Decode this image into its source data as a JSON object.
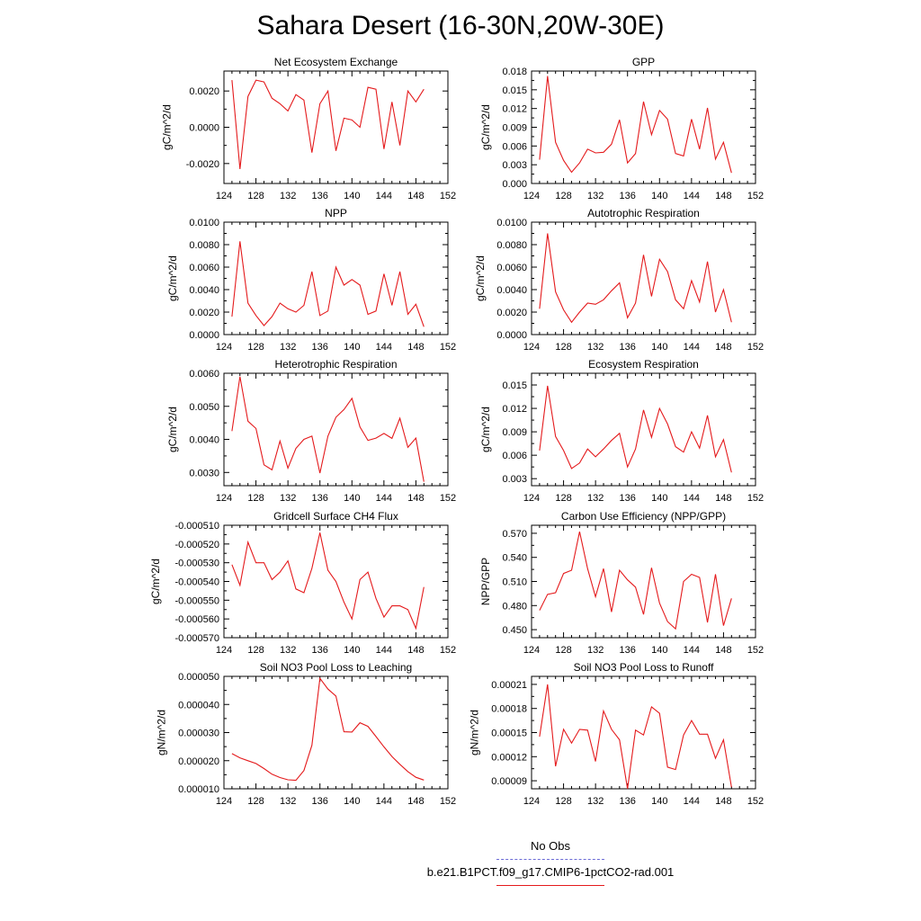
{
  "title": "Sahara Desert (16-30N,20W-30E)",
  "legend": {
    "items": [
      {
        "label": "No Obs",
        "color": "#6b6bd6",
        "dash": true
      },
      {
        "label": "b.e21.B1PCT.f09_g17.CMIP6-1pctCO2-rad.001",
        "color": "#e41a1c",
        "dash": false
      }
    ]
  },
  "chart_data": [
    {
      "type": "line",
      "title": "Net Ecosystem Exchange",
      "ylabel": "gC/m^2/d",
      "xlim": [
        124,
        152
      ],
      "xticks": [
        124,
        128,
        132,
        136,
        140,
        144,
        148,
        152
      ],
      "ylim": [
        -0.0031,
        0.0031
      ],
      "yticks": [
        -0.002,
        0.0,
        0.002
      ],
      "ytick_labels": [
        "-0.0020",
        "0.0000",
        "0.0020"
      ],
      "x": [
        125,
        126,
        127,
        128,
        129,
        130,
        131,
        132,
        133,
        134,
        135,
        136,
        137,
        138,
        139,
        140,
        141,
        142,
        143,
        144,
        145,
        146,
        147,
        148,
        149
      ],
      "series": [
        {
          "color": "#e41a1c",
          "values": [
            0.0026,
            -0.0023,
            0.0017,
            0.0026,
            0.0025,
            0.0016,
            0.0013,
            0.0009,
            0.0018,
            0.0015,
            -0.0014,
            0.0013,
            0.002,
            -0.0013,
            0.0005,
            0.0004,
            0.0,
            0.0022,
            0.0021,
            -0.0012,
            0.0014,
            -0.001,
            0.002,
            0.0014,
            0.0021
          ]
        }
      ]
    },
    {
      "type": "line",
      "title": "GPP",
      "ylabel": "gC/m^2/d",
      "xlim": [
        124,
        152
      ],
      "xticks": [
        124,
        128,
        132,
        136,
        140,
        144,
        148,
        152
      ],
      "ylim": [
        0.0,
        0.018
      ],
      "yticks": [
        0.0,
        0.003,
        0.006,
        0.009,
        0.012,
        0.015,
        0.018
      ],
      "ytick_labels": [
        "0.000",
        "0.003",
        "0.006",
        "0.009",
        "0.012",
        "0.015",
        "0.018"
      ],
      "x": [
        125,
        126,
        127,
        128,
        129,
        130,
        131,
        132,
        133,
        134,
        135,
        136,
        137,
        138,
        139,
        140,
        141,
        142,
        143,
        144,
        145,
        146,
        147,
        148,
        149
      ],
      "series": [
        {
          "color": "#e41a1c",
          "values": [
            0.0038,
            0.0172,
            0.0066,
            0.0037,
            0.0018,
            0.0033,
            0.0055,
            0.0049,
            0.005,
            0.0063,
            0.0102,
            0.0033,
            0.0048,
            0.0131,
            0.0078,
            0.0117,
            0.0103,
            0.0048,
            0.0044,
            0.0103,
            0.0055,
            0.0121,
            0.0039,
            0.0066,
            0.0017
          ]
        }
      ]
    },
    {
      "type": "line",
      "title": "NPP",
      "ylabel": "gC/m^2/d",
      "xlim": [
        124,
        152
      ],
      "xticks": [
        124,
        128,
        132,
        136,
        140,
        144,
        148,
        152
      ],
      "ylim": [
        0.0,
        0.01
      ],
      "yticks": [
        0.0,
        0.002,
        0.004,
        0.006,
        0.008,
        0.01
      ],
      "ytick_labels": [
        "0.0000",
        "0.0020",
        "0.0040",
        "0.0060",
        "0.0080",
        "0.0100"
      ],
      "x": [
        125,
        126,
        127,
        128,
        129,
        130,
        131,
        132,
        133,
        134,
        135,
        136,
        137,
        138,
        139,
        140,
        141,
        142,
        143,
        144,
        145,
        146,
        147,
        148,
        149
      ],
      "series": [
        {
          "color": "#e41a1c",
          "values": [
            0.0016,
            0.0083,
            0.0028,
            0.0017,
            0.0008,
            0.0016,
            0.0028,
            0.0023,
            0.002,
            0.0026,
            0.0056,
            0.0017,
            0.0021,
            0.006,
            0.0044,
            0.0049,
            0.0044,
            0.0018,
            0.0021,
            0.0054,
            0.0026,
            0.0056,
            0.0018,
            0.0027,
            0.0007
          ]
        }
      ]
    },
    {
      "type": "line",
      "title": "Autotrophic Respiration",
      "ylabel": "gC/m^2/d",
      "xlim": [
        124,
        152
      ],
      "xticks": [
        124,
        128,
        132,
        136,
        140,
        144,
        148,
        152
      ],
      "ylim": [
        0.0,
        0.01
      ],
      "yticks": [
        0.0,
        0.002,
        0.004,
        0.006,
        0.008,
        0.01
      ],
      "ytick_labels": [
        "0.0000",
        "0.0020",
        "0.0040",
        "0.0060",
        "0.0080",
        "0.0100"
      ],
      "x": [
        125,
        126,
        127,
        128,
        129,
        130,
        131,
        132,
        133,
        134,
        135,
        136,
        137,
        138,
        139,
        140,
        141,
        142,
        143,
        144,
        145,
        146,
        147,
        148,
        149
      ],
      "series": [
        {
          "color": "#e41a1c",
          "values": [
            0.0023,
            0.009,
            0.0038,
            0.0022,
            0.0011,
            0.002,
            0.0028,
            0.0027,
            0.0031,
            0.0039,
            0.0046,
            0.0015,
            0.0028,
            0.0071,
            0.0034,
            0.0067,
            0.0056,
            0.0031,
            0.0023,
            0.0048,
            0.0029,
            0.0065,
            0.002,
            0.004,
            0.0011
          ]
        }
      ]
    },
    {
      "type": "line",
      "title": "Heterotrophic Respiration",
      "ylabel": "gC/m^2/d",
      "xlim": [
        124,
        152
      ],
      "xticks": [
        124,
        128,
        132,
        136,
        140,
        144,
        148,
        152
      ],
      "ylim": [
        0.0026,
        0.006
      ],
      "yticks": [
        0.003,
        0.004,
        0.005,
        0.006
      ],
      "ytick_labels": [
        "0.0030",
        "0.0040",
        "0.0050",
        "0.0060"
      ],
      "x": [
        125,
        126,
        127,
        128,
        129,
        130,
        131,
        132,
        133,
        134,
        135,
        136,
        137,
        138,
        139,
        140,
        141,
        142,
        143,
        144,
        145,
        146,
        147,
        148,
        149
      ],
      "series": [
        {
          "color": "#e41a1c",
          "values": [
            0.00425,
            0.0059,
            0.00455,
            0.00433,
            0.00323,
            0.00308,
            0.00395,
            0.00313,
            0.00373,
            0.004,
            0.0041,
            0.00298,
            0.0041,
            0.00467,
            0.0049,
            0.00524,
            0.00438,
            0.00397,
            0.00404,
            0.00418,
            0.00403,
            0.00464,
            0.00376,
            0.00404,
            0.00272
          ]
        }
      ]
    },
    {
      "type": "line",
      "title": "Ecosystem Respiration",
      "ylabel": "gC/m^2/d",
      "xlim": [
        124,
        152
      ],
      "xticks": [
        124,
        128,
        132,
        136,
        140,
        144,
        148,
        152
      ],
      "ylim": [
        0.0021,
        0.0165
      ],
      "yticks": [
        0.003,
        0.006,
        0.009,
        0.012,
        0.015
      ],
      "ytick_labels": [
        "0.003",
        "0.006",
        "0.009",
        "0.012",
        "0.015"
      ],
      "x": [
        125,
        126,
        127,
        128,
        129,
        130,
        131,
        132,
        133,
        134,
        135,
        136,
        137,
        138,
        139,
        140,
        141,
        142,
        143,
        144,
        145,
        146,
        147,
        148,
        149
      ],
      "series": [
        {
          "color": "#e41a1c",
          "values": [
            0.0066,
            0.0149,
            0.0084,
            0.0066,
            0.0043,
            0.005,
            0.0068,
            0.0058,
            0.0068,
            0.0079,
            0.0088,
            0.0045,
            0.0068,
            0.0118,
            0.0083,
            0.012,
            0.01,
            0.0071,
            0.0064,
            0.009,
            0.0069,
            0.0111,
            0.0058,
            0.008,
            0.0038
          ]
        }
      ]
    },
    {
      "type": "line",
      "title": "Gridcell Surface CH4 Flux",
      "ylabel": "gC/m^2/d",
      "xlim": [
        124,
        152
      ],
      "xticks": [
        124,
        128,
        132,
        136,
        140,
        144,
        148,
        152
      ],
      "ylim": [
        -0.00057,
        -0.00051
      ],
      "yticks": [
        -0.00057,
        -0.00056,
        -0.00055,
        -0.00054,
        -0.00053,
        -0.00052,
        -0.00051
      ],
      "ytick_labels": [
        "-0.000570",
        "-0.000560",
        "-0.000550",
        "-0.000540",
        "-0.000530",
        "-0.000520",
        "-0.000510"
      ],
      "x": [
        125,
        126,
        127,
        128,
        129,
        130,
        131,
        132,
        133,
        134,
        135,
        136,
        137,
        138,
        139,
        140,
        141,
        142,
        143,
        144,
        145,
        146,
        147,
        148,
        149
      ],
      "series": [
        {
          "color": "#e41a1c",
          "values": [
            -0.000531,
            -0.000542,
            -0.000519,
            -0.00053,
            -0.00053,
            -0.000539,
            -0.000535,
            -0.000529,
            -0.000544,
            -0.000546,
            -0.000533,
            -0.000514,
            -0.000534,
            -0.00054,
            -0.000551,
            -0.00056,
            -0.000539,
            -0.000535,
            -0.000549,
            -0.000559,
            -0.000553,
            -0.000553,
            -0.000555,
            -0.000565,
            -0.000543
          ]
        }
      ]
    },
    {
      "type": "line",
      "title": "Carbon Use Efficiency (NPP/GPP)",
      "ylabel": "NPP/GPP",
      "xlim": [
        124,
        152
      ],
      "xticks": [
        124,
        128,
        132,
        136,
        140,
        144,
        148,
        152
      ],
      "ylim": [
        0.44,
        0.58
      ],
      "yticks": [
        0.45,
        0.48,
        0.51,
        0.54,
        0.57
      ],
      "ytick_labels": [
        "0.450",
        "0.480",
        "0.510",
        "0.540",
        "0.570"
      ],
      "x": [
        125,
        126,
        127,
        128,
        129,
        130,
        131,
        132,
        133,
        134,
        135,
        136,
        137,
        138,
        139,
        140,
        141,
        142,
        143,
        144,
        145,
        146,
        147,
        148,
        149
      ],
      "series": [
        {
          "color": "#e41a1c",
          "values": [
            0.474,
            0.494,
            0.496,
            0.52,
            0.524,
            0.572,
            0.526,
            0.491,
            0.526,
            0.472,
            0.524,
            0.512,
            0.503,
            0.469,
            0.527,
            0.483,
            0.46,
            0.451,
            0.51,
            0.519,
            0.515,
            0.459,
            0.519,
            0.455,
            0.489
          ]
        }
      ]
    },
    {
      "type": "line",
      "title": "Soil NO3 Pool Loss to Leaching",
      "ylabel": "gN/m^2/d",
      "xlim": [
        124,
        152
      ],
      "xticks": [
        124,
        128,
        132,
        136,
        140,
        144,
        148,
        152
      ],
      "ylim": [
        1e-05,
        5e-05
      ],
      "yticks": [
        1e-05,
        2e-05,
        3e-05,
        4e-05,
        5e-05
      ],
      "ytick_labels": [
        "0.000010",
        "0.000020",
        "0.000030",
        "0.000040",
        "0.000050"
      ],
      "x": [
        125,
        126,
        127,
        128,
        129,
        130,
        131,
        132,
        133,
        134,
        135,
        136,
        137,
        138,
        139,
        140,
        141,
        142,
        143,
        144,
        145,
        146,
        147,
        148,
        149
      ],
      "series": [
        {
          "color": "#e41a1c",
          "values": [
            2.25e-05,
            2.1e-05,
            2e-05,
            1.9e-05,
            1.72e-05,
            1.52e-05,
            1.4e-05,
            1.32e-05,
            1.3e-05,
            1.65e-05,
            2.55e-05,
            4.93e-05,
            4.55e-05,
            4.3e-05,
            3.03e-05,
            3.02e-05,
            3.35e-05,
            3.22e-05,
            2.86e-05,
            2.49e-05,
            2.15e-05,
            1.87e-05,
            1.61e-05,
            1.41e-05,
            1.31e-05
          ]
        }
      ]
    },
    {
      "type": "line",
      "title": "Soil NO3 Pool Loss to Runoff",
      "ylabel": "gN/m^2/d",
      "xlim": [
        124,
        152
      ],
      "xticks": [
        124,
        128,
        132,
        136,
        140,
        144,
        148,
        152
      ],
      "ylim": [
        8e-05,
        0.00022
      ],
      "yticks": [
        9e-05,
        0.00012,
        0.00015,
        0.00018,
        0.00021
      ],
      "ytick_labels": [
        "0.00009",
        "0.00012",
        "0.00015",
        "0.00018",
        "0.00021"
      ],
      "x": [
        125,
        126,
        127,
        128,
        129,
        130,
        131,
        132,
        133,
        134,
        135,
        136,
        137,
        138,
        139,
        140,
        141,
        142,
        143,
        144,
        145,
        146,
        147,
        148,
        149
      ],
      "series": [
        {
          "color": "#e41a1c",
          "values": [
            0.000145,
            0.00021,
            0.000108,
            0.000154,
            0.000137,
            0.000154,
            0.000153,
            0.000114,
            0.000177,
            0.000154,
            0.000141,
            8e-05,
            0.000153,
            0.000147,
            0.000182,
            0.000174,
            0.000107,
            0.000104,
            0.000147,
            0.000165,
            0.000148,
            0.000148,
            0.000118,
            0.000141,
            8.2e-05
          ]
        }
      ]
    }
  ]
}
